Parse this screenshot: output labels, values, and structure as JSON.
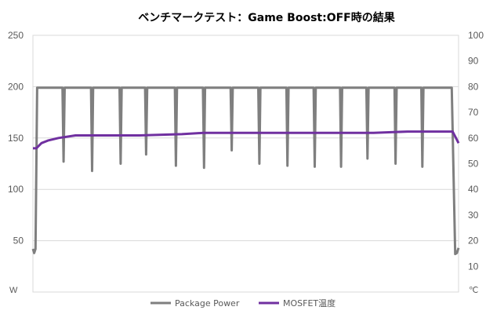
{
  "chart_data": {
    "type": "line",
    "title": "ベンチマークテスト：Game Boost:OFF時の結果",
    "left_axis": {
      "unit_label": "W",
      "ylim": [
        0,
        250
      ],
      "ticks": [
        50,
        100,
        150,
        200,
        250
      ],
      "tick_labels": [
        "50",
        "100",
        "150",
        "200",
        "250"
      ]
    },
    "right_axis": {
      "unit_label": "℃",
      "ylim": [
        0,
        100
      ],
      "ticks": [
        10,
        20,
        30,
        40,
        50,
        60,
        70,
        80,
        90,
        100
      ],
      "tick_labels": [
        "10",
        "20",
        "30",
        "40",
        "50",
        "60",
        "70",
        "80",
        "90",
        "100"
      ]
    },
    "grid": "horizontal",
    "legend_position": "bottom",
    "x_range": [
      0,
      100
    ],
    "series": [
      {
        "name": "Package Power",
        "axis": "left",
        "color": "#7f7f7f",
        "baseline": 199,
        "start": {
          "x": [
            0,
            0.3,
            0.6,
            1.0
          ],
          "y": [
            42,
            38,
            42,
            199
          ]
        },
        "end": {
          "x": [
            98.4,
            99.2,
            99.6,
            100
          ],
          "y": [
            199,
            37,
            38,
            43
          ]
        },
        "dips": [
          {
            "x": 7.2,
            "y": 127
          },
          {
            "x": 13.9,
            "y": 118
          },
          {
            "x": 20.6,
            "y": 125
          },
          {
            "x": 26.6,
            "y": 134
          },
          {
            "x": 33.6,
            "y": 123
          },
          {
            "x": 40.2,
            "y": 121
          },
          {
            "x": 46.7,
            "y": 138
          },
          {
            "x": 53.2,
            "y": 125
          },
          {
            "x": 59.8,
            "y": 123
          },
          {
            "x": 66.2,
            "y": 122
          },
          {
            "x": 72.4,
            "y": 122
          },
          {
            "x": 78.6,
            "y": 130
          },
          {
            "x": 85.2,
            "y": 125
          },
          {
            "x": 91.5,
            "y": 122
          }
        ]
      },
      {
        "name": "MOSFET温度",
        "axis": "right",
        "color": "#7030a0",
        "points": [
          {
            "x": 0,
            "y": 56
          },
          {
            "x": 0.8,
            "y": 56
          },
          {
            "x": 2,
            "y": 58
          },
          {
            "x": 3.5,
            "y": 59
          },
          {
            "x": 6,
            "y": 60
          },
          {
            "x": 10,
            "y": 61
          },
          {
            "x": 20,
            "y": 61
          },
          {
            "x": 25,
            "y": 61
          },
          {
            "x": 35,
            "y": 61.5
          },
          {
            "x": 40,
            "y": 62
          },
          {
            "x": 50,
            "y": 62
          },
          {
            "x": 60,
            "y": 62
          },
          {
            "x": 70,
            "y": 62
          },
          {
            "x": 80,
            "y": 62
          },
          {
            "x": 88,
            "y": 62.5
          },
          {
            "x": 93,
            "y": 62.5
          },
          {
            "x": 98.6,
            "y": 62.5
          },
          {
            "x": 99.4,
            "y": 60
          },
          {
            "x": 100,
            "y": 58
          }
        ]
      }
    ]
  }
}
